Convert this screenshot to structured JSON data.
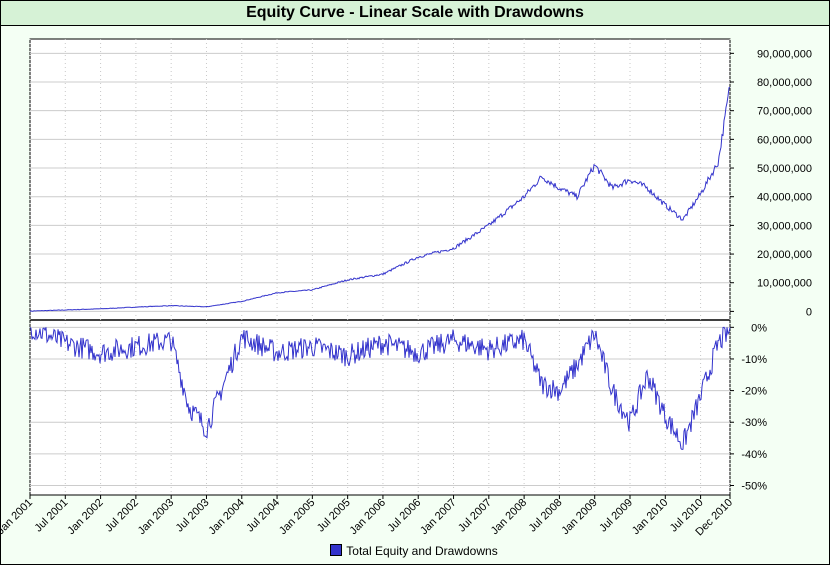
{
  "chart_data": {
    "type": "line",
    "title": "Equity Curve - Linear Scale with Drawdowns",
    "legend": {
      "label": "Total Equity and Drawdowns",
      "placement": "bottom"
    },
    "colors": {
      "line": "#3333cc",
      "grid": "#c0c0c0",
      "background": "#ffffff"
    },
    "x_ticks": [
      "Jan 2001",
      "Jul 2001",
      "Jan 2002",
      "Jul 2002",
      "Jan 2003",
      "Jul 2003",
      "Jan 2004",
      "Jul 2004",
      "Jan 2005",
      "Jul 2005",
      "Jan 2006",
      "Jul 2006",
      "Jan 2007",
      "Jul 2007",
      "Jan 2008",
      "Jul 2008",
      "Jan 2009",
      "Jul 2009",
      "Jan 2010",
      "Jul 2010",
      "Dec 2010"
    ],
    "equity_panel": {
      "ylim": [
        -3000000,
        95000000
      ],
      "y_ticks": [
        "90,000,000",
        "80,000,000",
        "70,000,000",
        "60,000,000",
        "50,000,000",
        "40,000,000",
        "30,000,000",
        "20,000,000",
        "10,000,000",
        "0"
      ],
      "y_tick_values": [
        90000000,
        80000000,
        70000000,
        60000000,
        50000000,
        40000000,
        30000000,
        20000000,
        10000000,
        0
      ],
      "x": [
        "2001-01",
        "2001-07",
        "2002-01",
        "2002-07",
        "2003-01",
        "2003-07",
        "2004-01",
        "2004-07",
        "2005-01",
        "2005-07",
        "2006-01",
        "2006-07",
        "2007-01",
        "2007-07",
        "2008-01",
        "2008-04",
        "2008-07",
        "2008-10",
        "2009-01",
        "2009-04",
        "2009-07",
        "2009-10",
        "2010-01",
        "2010-04",
        "2010-07",
        "2010-10",
        "2010-12"
      ],
      "values": [
        100000,
        500000,
        900000,
        1500000,
        2000000,
        1600000,
        3500000,
        6500000,
        7500000,
        11000000,
        13000000,
        19000000,
        22000000,
        30000000,
        40000000,
        47000000,
        43000000,
        40000000,
        51000000,
        43000000,
        46000000,
        43000000,
        37000000,
        32000000,
        41000000,
        52000000,
        79000000
      ]
    },
    "drawdown_panel": {
      "ylim": [
        -53,
        2
      ],
      "y_ticks": [
        "0%",
        "-10%",
        "-20%",
        "-30%",
        "-40%",
        "-50%"
      ],
      "y_tick_values": [
        0,
        -10,
        -20,
        -30,
        -40,
        -50
      ],
      "x": [
        "2001-01",
        "2001-07",
        "2002-01",
        "2002-07",
        "2003-01",
        "2003-04",
        "2003-07",
        "2004-01",
        "2004-07",
        "2005-01",
        "2005-07",
        "2006-01",
        "2006-07",
        "2007-01",
        "2007-07",
        "2008-01",
        "2008-04",
        "2008-07",
        "2008-10",
        "2009-01",
        "2009-04",
        "2009-07",
        "2009-10",
        "2010-01",
        "2010-04",
        "2010-07",
        "2010-10",
        "2010-12"
      ],
      "values": [
        0,
        -5,
        -8,
        -6,
        -4,
        -25,
        -32,
        -3,
        -8,
        -6,
        -9,
        -5,
        -8,
        -4,
        -7,
        -4,
        -18,
        -20,
        -12,
        -2,
        -20,
        -30,
        -15,
        -28,
        -37,
        -22,
        -5,
        -1
      ]
    }
  }
}
